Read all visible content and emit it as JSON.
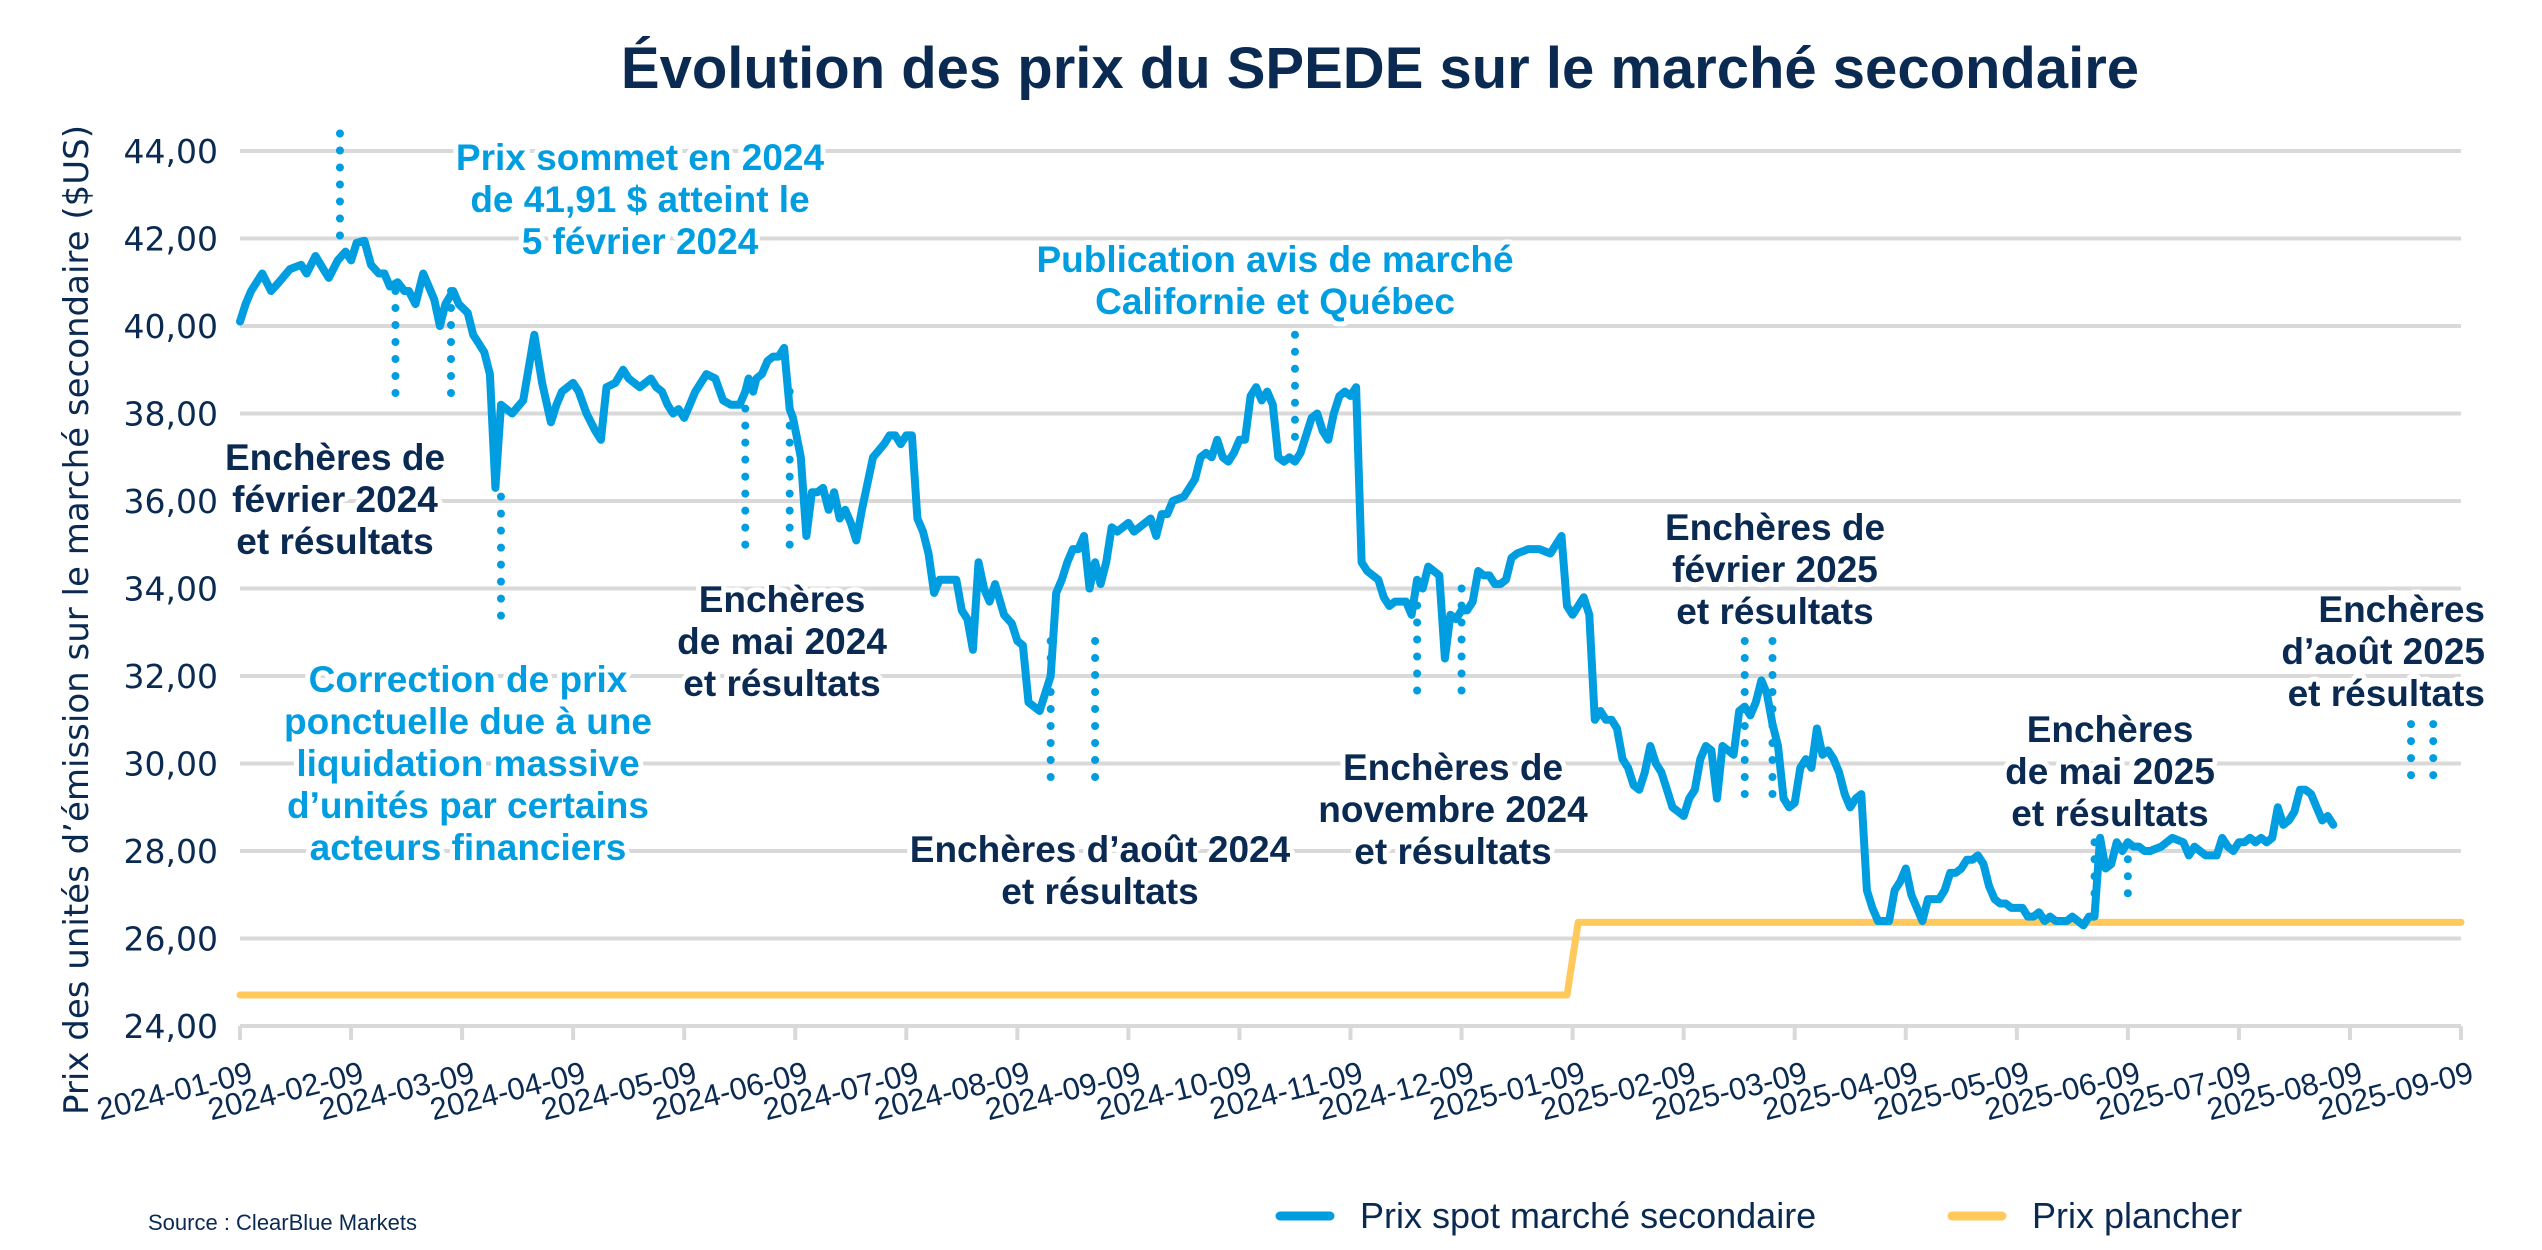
{
  "chart_data": {
    "type": "line",
    "title": "Évolution des prix du SPEDE sur le marché secondaire",
    "xlabel": "",
    "ylabel": "Prix des unités d’émission sur le marché secondaire ($US)",
    "ylim": [
      24,
      44
    ],
    "yticks": [
      "24,00",
      "26,00",
      "28,00",
      "30,00",
      "32,00",
      "34,00",
      "36,00",
      "38,00",
      "40,00",
      "42,00",
      "44,00"
    ],
    "ytick_values": [
      24,
      26,
      28,
      30,
      32,
      34,
      36,
      38,
      40,
      42,
      44
    ],
    "xlim": [
      "2024-01-09",
      "2025-09-09"
    ],
    "xticks": [
      "2024-01-09",
      "2024-02-09",
      "2024-03-09",
      "2024-04-09",
      "2024-05-09",
      "2024-06-09",
      "2024-07-09",
      "2024-08-09",
      "2024-09-09",
      "2024-10-09",
      "2024-11-09",
      "2024-12-09",
      "2025-01-09",
      "2025-02-09",
      "2025-03-09",
      "2025-04-09",
      "2025-05-09",
      "2025-06-09",
      "2025-07-09",
      "2025-08-09",
      "2025-09-09"
    ],
    "grid": true,
    "legend_position": "bottom-right",
    "series": [
      {
        "name": "Prix spot marché secondaire",
        "color": "#009ee0",
        "x_month_offsets": [
          0,
          0.05,
          0.1,
          0.2,
          0.28,
          0.35,
          0.45,
          0.55,
          0.6,
          0.68,
          0.75,
          0.8,
          0.88,
          0.95,
          1.0,
          1.05,
          1.12,
          1.18,
          1.25,
          1.3,
          1.35,
          1.42,
          1.48,
          1.52,
          1.58,
          1.65,
          1.7,
          1.75,
          1.8,
          1.85,
          1.92,
          1.97,
          2.05,
          2.1,
          2.15,
          2.2,
          2.25,
          2.3,
          2.35,
          2.4,
          2.45,
          2.55,
          2.65,
          2.72,
          2.8,
          2.85,
          2.9,
          2.95,
          3.0,
          3.05,
          3.12,
          3.2,
          3.25,
          3.3,
          3.38,
          3.45,
          3.5,
          3.55,
          3.6,
          3.7,
          3.75,
          3.8,
          3.85,
          3.9,
          3.95,
          4.0,
          4.05,
          4.1,
          4.2,
          4.28,
          4.35,
          4.42,
          4.5,
          4.55,
          4.58,
          4.62,
          4.65,
          4.7,
          4.75,
          4.8,
          4.85,
          4.9,
          4.95,
          4.98,
          5.05,
          5.1,
          5.15,
          5.2,
          5.25,
          5.3,
          5.35,
          5.4,
          5.45,
          5.5,
          5.55,
          5.6,
          5.7,
          5.8,
          5.85,
          5.9,
          5.95,
          6.0,
          6.05,
          6.1,
          6.15,
          6.2,
          6.25,
          6.3,
          6.35,
          6.4,
          6.45,
          6.5,
          6.55,
          6.6,
          6.65,
          6.7,
          6.75,
          6.8,
          6.88,
          6.95,
          7.0,
          7.05,
          7.1,
          7.2,
          7.3,
          7.35,
          7.4,
          7.45,
          7.5,
          7.55,
          7.6,
          7.65,
          7.7,
          7.75,
          7.8,
          7.85,
          7.9,
          7.95,
          8.0,
          8.05,
          8.1,
          8.15,
          8.2,
          8.25,
          8.3,
          8.35,
          8.4,
          8.5,
          8.6,
          8.65,
          8.7,
          8.75,
          8.8,
          8.85,
          8.9,
          8.95,
          9.0,
          9.05,
          9.1,
          9.15,
          9.2,
          9.25,
          9.3,
          9.35,
          9.4,
          9.45,
          9.5,
          9.55,
          9.6,
          9.65,
          9.7,
          9.75,
          9.8,
          9.85,
          9.9,
          9.95,
          10.0,
          10.05,
          10.1,
          10.15,
          10.2,
          10.25,
          10.3,
          10.35,
          10.4,
          10.5,
          10.55,
          10.6,
          10.65,
          10.7,
          10.75,
          10.8,
          10.85,
          10.9,
          10.95,
          11.0,
          11.05,
          11.1,
          11.15,
          11.2,
          11.25,
          11.3,
          11.35,
          11.4,
          11.45,
          11.5,
          11.6,
          11.7,
          11.8,
          11.85,
          11.9,
          11.95,
          12.0,
          12.05,
          12.1,
          12.15,
          12.2,
          12.25,
          12.3,
          12.35,
          12.4,
          12.45,
          12.5,
          12.55,
          12.6,
          12.65,
          12.7,
          12.75,
          12.8,
          12.85,
          12.9,
          12.95,
          13.0,
          13.05,
          13.1,
          13.15,
          13.2,
          13.25,
          13.3,
          13.35,
          13.4,
          13.45,
          13.5,
          13.55,
          13.6,
          13.65,
          13.7,
          13.75,
          13.8,
          13.85,
          13.9,
          13.95,
          14.0,
          14.05,
          14.1,
          14.15,
          14.2,
          14.25,
          14.3,
          14.35,
          14.4,
          14.45,
          14.5,
          14.55,
          14.6,
          14.65,
          14.7,
          14.75,
          14.8,
          14.85,
          14.9,
          14.95,
          15.0,
          15.05,
          15.1,
          15.15,
          15.2,
          15.25,
          15.3,
          15.35,
          15.4,
          15.45,
          15.5,
          15.55,
          15.6,
          15.65,
          15.7,
          15.75,
          15.8,
          15.85,
          15.9,
          15.95,
          16.0,
          16.05,
          16.1,
          16.15,
          16.2,
          16.25,
          16.3,
          16.35,
          16.4,
          16.45,
          16.5,
          16.55,
          16.6,
          16.65,
          16.7,
          16.75,
          16.8,
          16.85,
          16.9,
          16.95,
          17.0,
          17.05,
          17.1,
          17.15,
          17.2,
          17.3,
          17.4,
          17.5,
          17.55,
          17.6,
          17.65,
          17.7,
          17.75,
          17.8,
          17.85,
          17.9,
          17.95,
          18.0,
          18.05,
          18.1,
          18.15,
          18.2,
          18.25,
          18.3,
          18.35,
          18.4,
          18.45,
          18.5,
          18.55,
          18.6,
          18.65,
          18.7,
          18.75,
          18.8,
          18.85,
          18.9,
          18.95,
          19.0,
          19.05,
          19.1,
          19.15,
          19.2,
          19.25,
          19.3,
          19.35,
          19.4,
          19.45,
          19.5,
          19.55,
          19.6,
          19.65,
          19.7,
          19.75,
          19.8,
          19.85,
          19.9,
          19.95,
          20.0
        ],
        "values": [
          40.1,
          40.5,
          40.8,
          41.2,
          40.8,
          41.0,
          41.3,
          41.4,
          41.2,
          41.6,
          41.3,
          41.1,
          41.5,
          41.7,
          41.5,
          41.9,
          41.95,
          41.4,
          41.2,
          41.2,
          40.9,
          41.0,
          40.8,
          40.8,
          40.5,
          41.2,
          40.9,
          40.6,
          40.0,
          40.5,
          40.8,
          40.5,
          40.3,
          39.8,
          39.6,
          39.4,
          38.9,
          36.3,
          38.2,
          38.1,
          38.0,
          38.3,
          39.8,
          38.7,
          37.8,
          38.2,
          38.5,
          38.6,
          38.7,
          38.5,
          38.0,
          37.6,
          37.4,
          38.6,
          38.7,
          39.0,
          38.8,
          38.7,
          38.6,
          38.8,
          38.6,
          38.5,
          38.2,
          38.0,
          38.1,
          37.9,
          38.2,
          38.5,
          38.9,
          38.8,
          38.3,
          38.2,
          38.2,
          38.5,
          38.8,
          38.5,
          38.8,
          38.9,
          39.2,
          39.3,
          39.3,
          39.5,
          38.1,
          37.9,
          37.0,
          35.2,
          36.2,
          36.2,
          36.3,
          35.8,
          36.2,
          35.6,
          35.8,
          35.5,
          35.1,
          35.8,
          37.0,
          37.3,
          37.5,
          37.5,
          37.3,
          37.5,
          37.5,
          35.6,
          35.3,
          34.8,
          33.9,
          34.2,
          34.2,
          34.2,
          34.2,
          33.5,
          33.3,
          32.6,
          34.6,
          34.0,
          33.7,
          34.1,
          33.4,
          33.2,
          32.8,
          32.7,
          31.4,
          31.2,
          32.0,
          33.9,
          34.2,
          34.6,
          34.9,
          34.9,
          35.2,
          34.0,
          34.6,
          34.1,
          34.6,
          35.4,
          35.3,
          35.4,
          35.5,
          35.3,
          35.4,
          35.5,
          35.6,
          35.2,
          35.7,
          35.7,
          36.0,
          36.1,
          36.5,
          37.0,
          37.1,
          37.0,
          37.4,
          37.0,
          36.9,
          37.1,
          37.4,
          37.4,
          38.4,
          38.6,
          38.3,
          38.5,
          38.2,
          37.0,
          36.9,
          37.0,
          36.9,
          37.1,
          37.5,
          37.9,
          38.0,
          37.6,
          37.4,
          38.0,
          38.4,
          38.5,
          38.4,
          38.6,
          34.6,
          34.4,
          34.3,
          34.2,
          33.8,
          33.6,
          33.7,
          33.7,
          33.4,
          34.2,
          34.0,
          34.5,
          34.4,
          34.3,
          32.4,
          33.4,
          33.3,
          33.5,
          33.5,
          33.7,
          34.4,
          34.3,
          34.3,
          34.1,
          34.1,
          34.2,
          34.7,
          34.8,
          34.9,
          34.9,
          34.8,
          35.0,
          35.2,
          33.6,
          33.4,
          33.6,
          33.8,
          33.4,
          31.0,
          31.2,
          31.0,
          31.0,
          30.8,
          30.1,
          29.9,
          29.5,
          29.4,
          29.8,
          30.4,
          30.0,
          29.8,
          29.4,
          29.0,
          28.9,
          28.8,
          29.2,
          29.4,
          30.1,
          30.4,
          30.3,
          29.2,
          30.4,
          30.3,
          30.2,
          31.2,
          31.3,
          31.1,
          31.4,
          31.9,
          31.6,
          30.9,
          30.4,
          29.2,
          29.0,
          29.1,
          29.9,
          30.1,
          29.9,
          30.8,
          30.2,
          30.3,
          30.1,
          29.8,
          29.3,
          29.0,
          29.2,
          29.3,
          27.1,
          26.7,
          26.4,
          26.4,
          26.4,
          27.1,
          27.3,
          27.6,
          27.0,
          26.7,
          26.4,
          26.9,
          26.9,
          26.9,
          27.1,
          27.5,
          27.5,
          27.6,
          27.8,
          27.8,
          27.9,
          27.7,
          27.2,
          26.9,
          26.8,
          26.8,
          26.7,
          26.7,
          26.7,
          26.5,
          26.5,
          26.6,
          26.4,
          26.5,
          26.4,
          26.4,
          26.4,
          26.5,
          26.4,
          26.3,
          26.5,
          26.5,
          28.3,
          27.6,
          27.7,
          28.2,
          28.0,
          28.2,
          28.1,
          28.1,
          28.0,
          28.0,
          28.1,
          28.3,
          28.2,
          27.9,
          28.1,
          28.0,
          27.9,
          27.9,
          27.9,
          28.3,
          28.1,
          28.0,
          28.2,
          28.2,
          28.3,
          28.2,
          28.3,
          28.2,
          28.3,
          29.0,
          28.6,
          28.7,
          28.9,
          29.4,
          29.4,
          29.3,
          29.0,
          28.7,
          28.8,
          28.6
        ],
        "line_width_style": "thick"
      },
      {
        "name": "Prix plancher",
        "color": "#ffc95c",
        "segments": [
          {
            "from_month": 0,
            "to_month": 11.95,
            "value": 24.71
          },
          {
            "from_month": 12.05,
            "to_month": 20.0,
            "value": 26.37
          }
        ]
      }
    ],
    "annotations": [
      {
        "id": "peak",
        "color": "blue",
        "lines": [
          "Prix sommet en 2024",
          "de 41,91 $ atteint le",
          "5 février 2024"
        ],
        "marker_months": [
          0.9
        ],
        "marker_range": [
          41.95,
          44.4
        ]
      },
      {
        "id": "feb2024",
        "color": "dark",
        "lines": [
          "Enchères de",
          "février 2024",
          "et résultats"
        ],
        "marker_months": [
          1.4,
          1.9
        ],
        "marker_range": [
          38.1,
          40.8
        ]
      },
      {
        "id": "correction",
        "color": "blue",
        "lines": [
          "Correction de prix",
          "ponctuelle due à une",
          "liquidation massive",
          "d’unités par certains",
          "acteurs financiers"
        ],
        "marker_months": [
          2.35
        ],
        "marker_range": [
          33.2,
          36.1
        ]
      },
      {
        "id": "may2024",
        "color": "dark",
        "lines": [
          "Enchères",
          "de mai 2024",
          "et résultats"
        ],
        "marker_months": [
          4.55,
          4.95
        ],
        "marker_range": [
          35.0,
          38.5
        ]
      },
      {
        "id": "aug2024",
        "color": "dark",
        "lines": [
          "Enchères d’août 2024",
          "et résultats"
        ],
        "marker_months": [
          7.3,
          7.7
        ],
        "marker_range": [
          29.4,
          32.8
        ]
      },
      {
        "id": "publication",
        "color": "blue",
        "lines": [
          "Publication avis de marché",
          "Californie et Québec"
        ],
        "marker_months": [
          9.5
        ],
        "marker_range": [
          37.3,
          39.8
        ]
      },
      {
        "id": "nov2024",
        "color": "dark",
        "lines": [
          "Enchères de",
          "novembre 2024",
          "et résultats"
        ],
        "marker_months": [
          10.6,
          11.0
        ],
        "marker_range": [
          31.3,
          34.0
        ]
      },
      {
        "id": "feb2025",
        "color": "dark",
        "lines": [
          "Enchères de",
          "février 2025",
          "et résultats"
        ],
        "marker_months": [
          13.55,
          13.8
        ],
        "marker_range": [
          29.2,
          32.8
        ]
      },
      {
        "id": "may2025",
        "color": "dark",
        "lines": [
          "Enchères",
          "de mai 2025",
          "et résultats"
        ],
        "marker_months": [
          16.7,
          17.0
        ],
        "marker_range": [
          26.9,
          28.2
        ]
      },
      {
        "id": "aug2025",
        "color": "dark",
        "lines": [
          "Enchères",
          "d’août 2025",
          "et résultats"
        ],
        "marker_months": [
          19.55,
          19.75
        ],
        "marker_range": [
          29.4,
          30.9
        ]
      }
    ],
    "source": "Source : ClearBlue Markets"
  },
  "legend": {
    "items": [
      {
        "label": "Prix spot marché secondaire",
        "color": "#009ee0"
      },
      {
        "label": "Prix plancher",
        "color": "#ffc95c"
      }
    ]
  },
  "colors": {
    "dark": "#0b2a52",
    "blue": "#009ee0",
    "floor": "#ffc95c",
    "grid": "#d9d9d9"
  }
}
